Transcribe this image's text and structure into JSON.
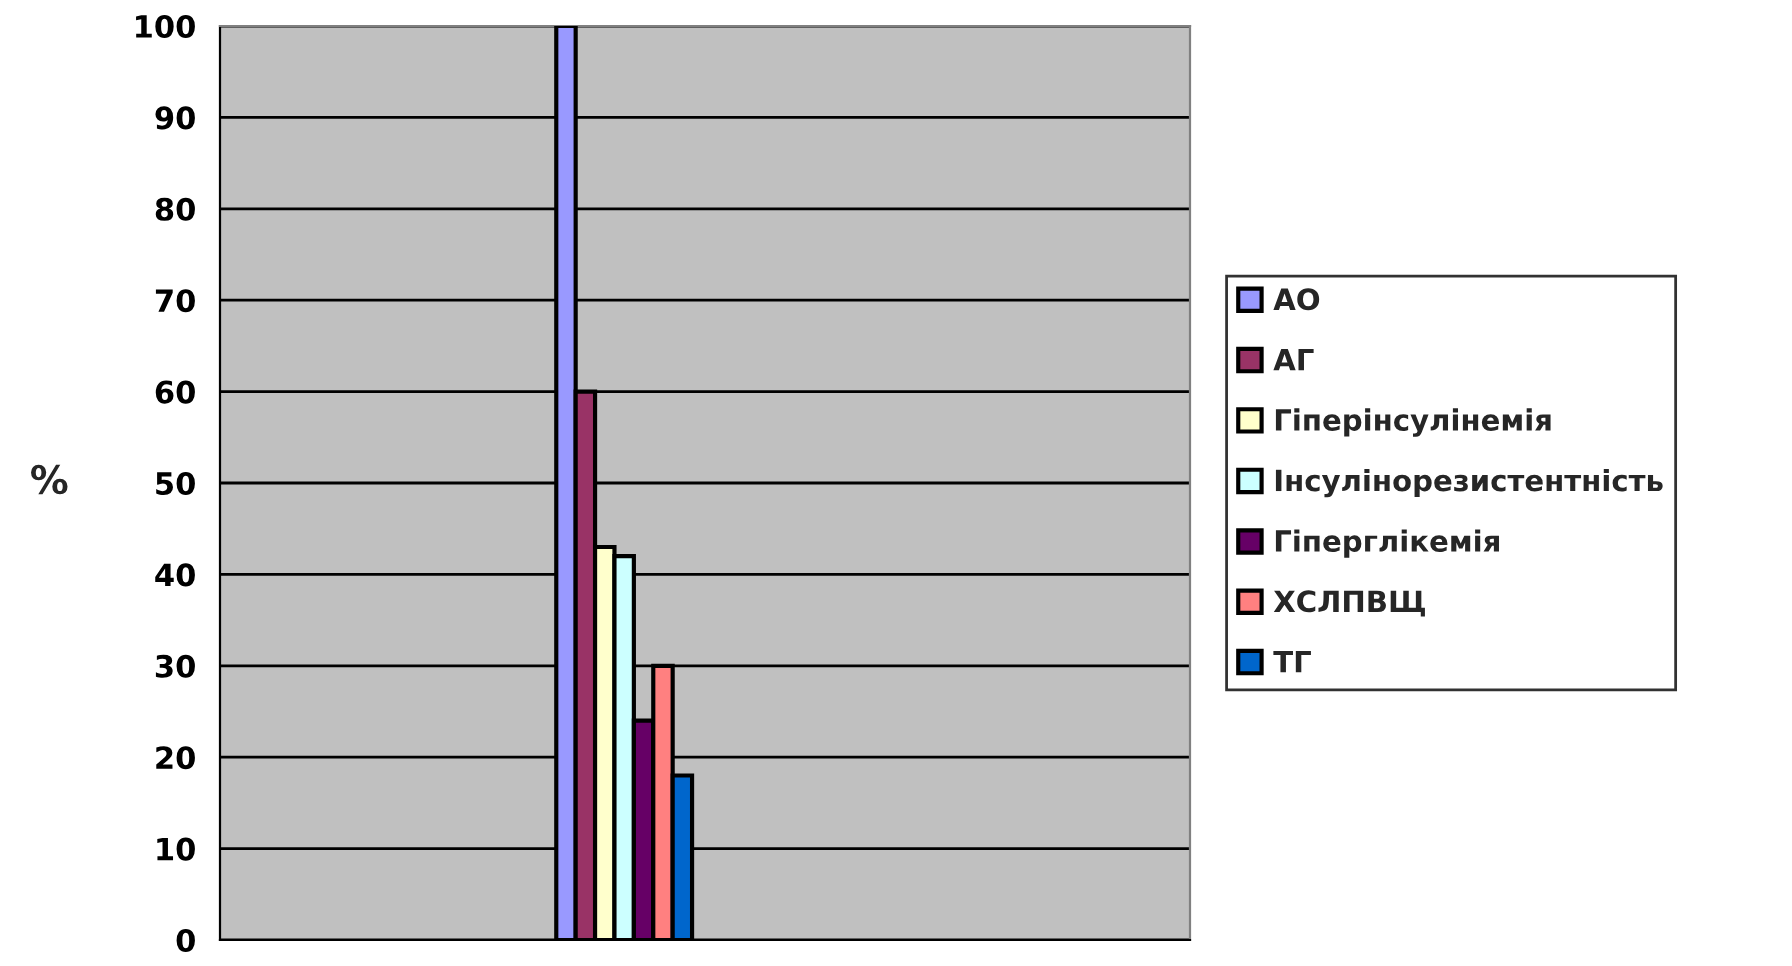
{
  "chart_data": {
    "type": "bar",
    "ylabel": "%",
    "categories": [
      null,
      null,
      null,
      null,
      null,
      null
    ],
    "series": [
      {
        "name": "АО",
        "color": "#9999ff",
        "values": [
          null,
          null,
          100,
          null,
          null,
          null
        ]
      },
      {
        "name": "АГ",
        "color": "#993366",
        "values": [
          null,
          null,
          60,
          null,
          null,
          null
        ]
      },
      {
        "name": "Гіперінсулінемія",
        "color": "#ffffcc",
        "values": [
          null,
          null,
          43,
          null,
          null,
          null
        ]
      },
      {
        "name": "Інсулінорезистентність",
        "color": "#ccffff",
        "values": [
          null,
          null,
          42,
          null,
          null,
          null
        ]
      },
      {
        "name": "Гіперглікемія",
        "color": "#660066",
        "values": [
          null,
          null,
          24,
          null,
          null,
          null
        ]
      },
      {
        "name": "ХСЛПВЩ",
        "color": "#ff8080",
        "values": [
          null,
          null,
          30,
          null,
          null,
          null
        ]
      },
      {
        "name": "ТГ",
        "color": "#0066cc",
        "values": [
          null,
          null,
          18,
          null,
          null,
          null
        ]
      }
    ],
    "ylim": [
      0,
      100
    ],
    "yticks": [
      0,
      10,
      20,
      30,
      40,
      50,
      60,
      70,
      80,
      90,
      100
    ],
    "grid": "y",
    "legend": "right"
  }
}
